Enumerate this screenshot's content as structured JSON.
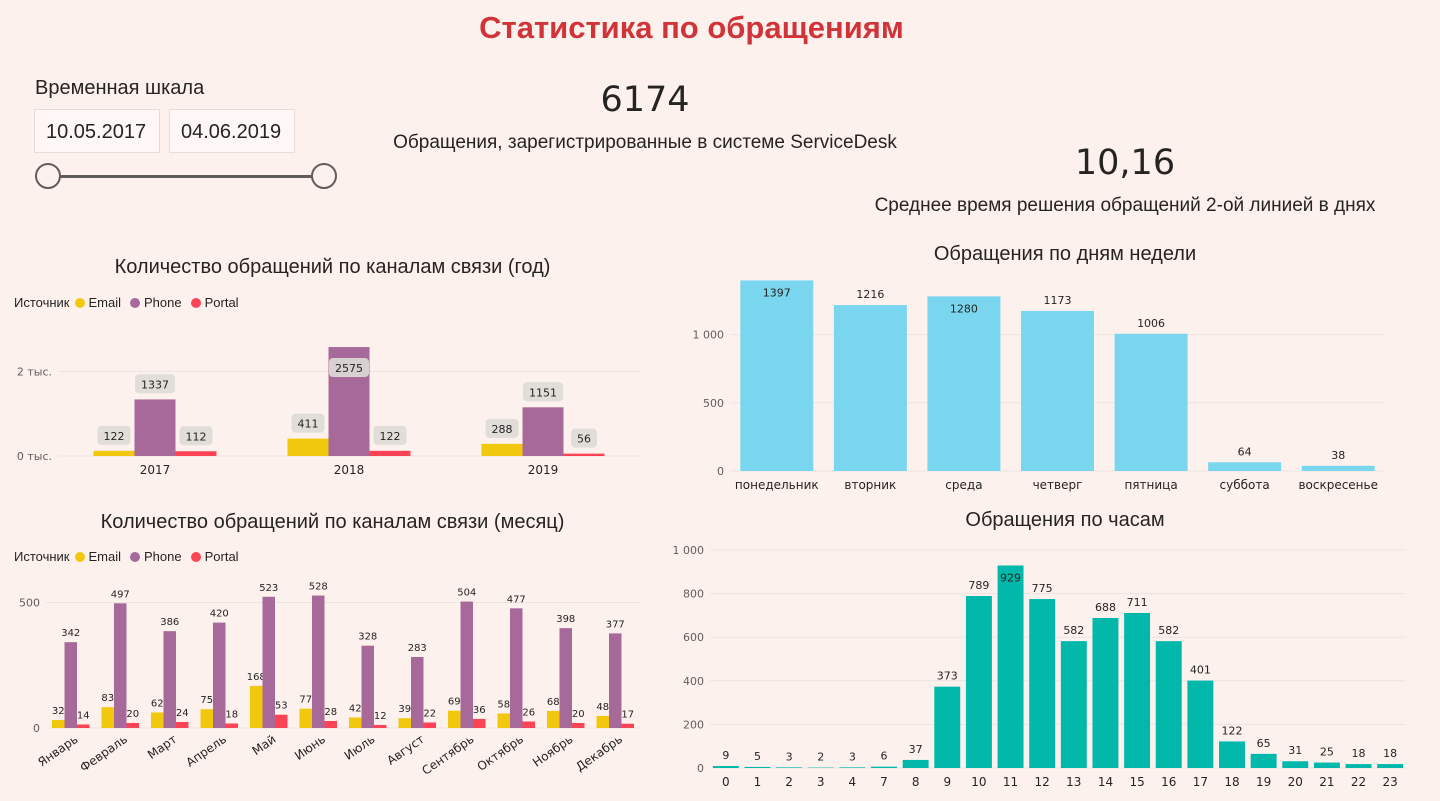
{
  "title": "Статистика по обращениям",
  "slicer": {
    "title": "Временная шкала",
    "start": "10.05.2017",
    "end": "04.06.2019"
  },
  "kpis": [
    {
      "value": "6174",
      "label": "Обращения, зарегистрированные в системе ServiceDesk"
    },
    {
      "value": "10,16",
      "label": "Среднее время решения обращений 2-ой линией в днях"
    }
  ],
  "legend": {
    "title": "Источник",
    "items": [
      "Email",
      "Phone",
      "Portal"
    ]
  },
  "colors": {
    "Email": "#f2c80f",
    "Phone": "#a66999",
    "Portal": "#fd4456",
    "weekday": "#79d6ee",
    "hour": "#01b8aa",
    "label_bg": "#dedbd7"
  },
  "chart_data": [
    {
      "type": "bar",
      "title": "Количество обращений по каналам связи (год)",
      "categories": [
        "2017",
        "2018",
        "2019"
      ],
      "series": [
        {
          "name": "Email",
          "values": [
            122,
            411,
            288
          ]
        },
        {
          "name": "Phone",
          "values": [
            1337,
            2575,
            1151
          ]
        },
        {
          "name": "Portal",
          "values": [
            112,
            122,
            56
          ]
        }
      ],
      "y_ticks": [
        {
          "value": 0,
          "label": "0 тыс."
        },
        {
          "value": 2000,
          "label": "2 тыс."
        }
      ],
      "ylim": [
        0,
        2600
      ],
      "legend": "top-left",
      "grid": true
    },
    {
      "type": "bar",
      "title": "Количество обращений по каналам связи (месяц)",
      "categories": [
        "Январь",
        "Февраль",
        "Март",
        "Апрель",
        "Май",
        "Июнь",
        "Июль",
        "Август",
        "Сентябрь",
        "Октябрь",
        "Ноябрь",
        "Декабрь"
      ],
      "series": [
        {
          "name": "Email",
          "values": [
            32,
            83,
            62,
            75,
            168,
            77,
            42,
            39,
            69,
            58,
            68,
            48
          ]
        },
        {
          "name": "Phone",
          "values": [
            342,
            497,
            386,
            420,
            523,
            528,
            328,
            283,
            504,
            477,
            398,
            377
          ]
        },
        {
          "name": "Portal",
          "values": [
            14,
            20,
            24,
            18,
            53,
            28,
            12,
            22,
            36,
            26,
            20,
            17
          ]
        }
      ],
      "y_ticks": [
        {
          "value": 0,
          "label": "0"
        },
        {
          "value": 500,
          "label": "500"
        }
      ],
      "ylim": [
        0,
        550
      ],
      "legend": "top-left",
      "grid": true
    },
    {
      "type": "bar",
      "title": "Обращения по дням недели",
      "categories": [
        "понедельник",
        "вторник",
        "среда",
        "четверг",
        "пятница",
        "суббота",
        "воскресенье"
      ],
      "values": [
        1397,
        1216,
        1280,
        1173,
        1006,
        64,
        38
      ],
      "y_ticks": [
        {
          "value": 0,
          "label": "0"
        },
        {
          "value": 500,
          "label": "500"
        },
        {
          "value": 1000,
          "label": "1 000"
        }
      ],
      "ylim": [
        0,
        1400
      ],
      "grid": true
    },
    {
      "type": "bar",
      "title": "Обращения по часам",
      "categories": [
        "0",
        "1",
        "2",
        "3",
        "4",
        "7",
        "8",
        "9",
        "10",
        "11",
        "12",
        "13",
        "14",
        "15",
        "16",
        "17",
        "18",
        "19",
        "20",
        "21",
        "22",
        "23"
      ],
      "values": [
        9,
        5,
        3,
        2,
        3,
        6,
        37,
        373,
        789,
        929,
        775,
        582,
        688,
        711,
        582,
        401,
        122,
        65,
        31,
        25,
        18,
        18
      ],
      "y_ticks": [
        {
          "value": 0,
          "label": "0"
        },
        {
          "value": 200,
          "label": "200"
        },
        {
          "value": 400,
          "label": "400"
        },
        {
          "value": 600,
          "label": "600"
        },
        {
          "value": 800,
          "label": "800"
        },
        {
          "value": 1000,
          "label": "1 000"
        }
      ],
      "ylim": [
        0,
        1000
      ],
      "grid": true
    }
  ]
}
